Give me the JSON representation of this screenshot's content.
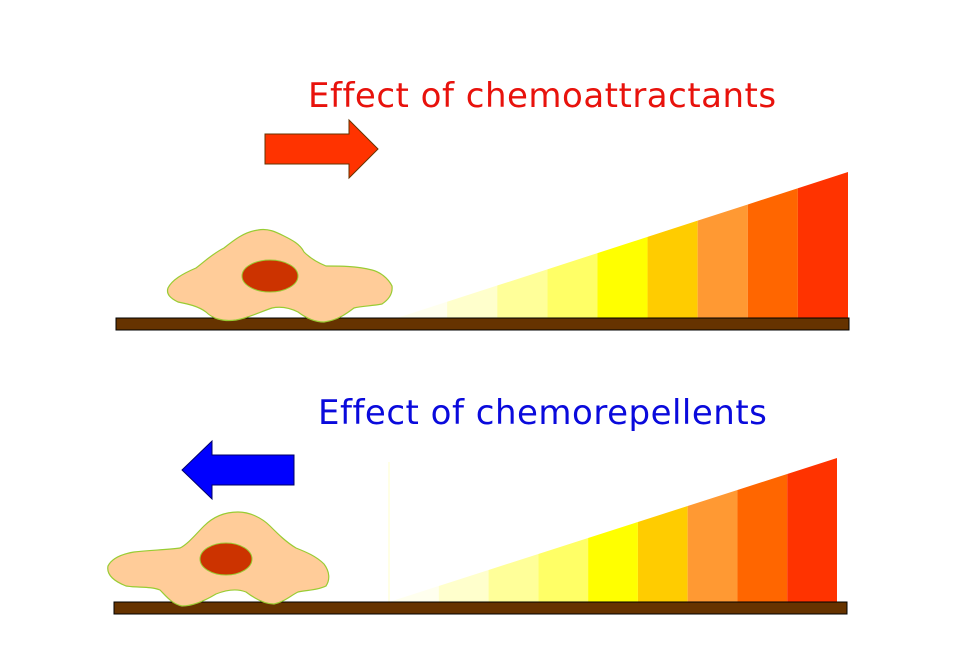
{
  "panels": {
    "attract": {
      "title": "Effect of chemoattractants",
      "title_color": "#e8120c",
      "arrow_direction": "right",
      "arrow_color": "#ff3300"
    },
    "repel": {
      "title": "Effect of chemorepellents",
      "title_color": "#0a0adc",
      "arrow_direction": "left",
      "arrow_color": "#0000ff"
    }
  },
  "colors": {
    "substrate": "#663300",
    "cell_body": "#ffcc99",
    "cell_outline": "#99cc33",
    "nucleus": "#cc3300",
    "gradient": [
      "#ffffee",
      "#ffffcc",
      "#ffff99",
      "#ffff66",
      "#ffff00",
      "#ffcc00",
      "#ff9933",
      "#ff6600",
      "#ff3300"
    ]
  }
}
